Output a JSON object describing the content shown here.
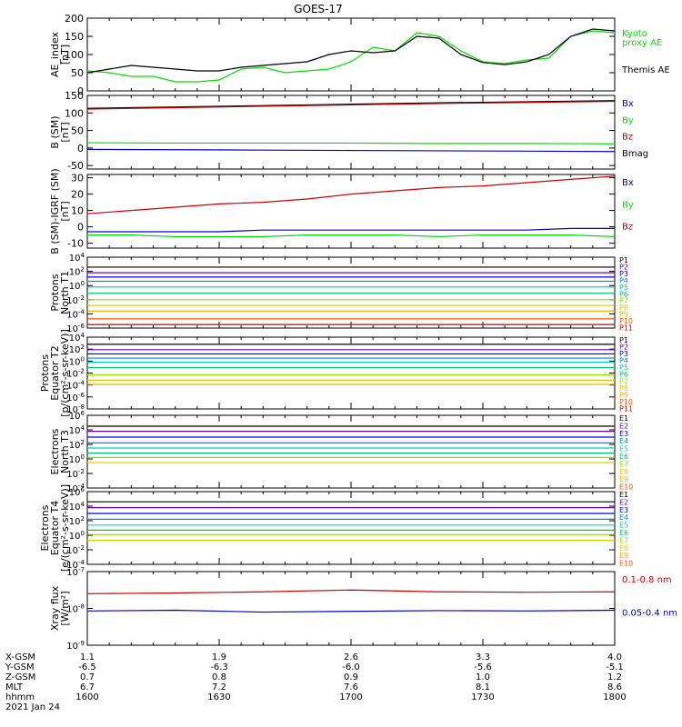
{
  "title": "GOES-17",
  "colors": {
    "black": "#000000",
    "red": "#cc0000",
    "green": "#00e000",
    "blue": "#0000cc",
    "p": [
      "#000000",
      "#6a00b0",
      "#0000ee",
      "#0088ee",
      "#00cccc",
      "#00c070",
      "#90dd00",
      "#ddcc00",
      "#ffaa00",
      "#ff5500",
      "#cc0000"
    ],
    "e": [
      "#000000",
      "#6a00b0",
      "#0000ee",
      "#0088ee",
      "#00cccc",
      "#00c070",
      "#90dd00",
      "#ddcc00",
      "#ffaa00",
      "#ff5500",
      "#cc0000"
    ]
  },
  "chart_data": [
    {
      "id": "ae",
      "type": "line",
      "ylabel": [
        "AE_index",
        "[nT]"
      ],
      "ylim": [
        0,
        200
      ],
      "yticks": [
        "0",
        "50",
        "100",
        "150",
        "200"
      ],
      "legend": [
        {
          "text": "Kyoto",
          "color": "green"
        },
        {
          "text": "proxy AE",
          "color": "green"
        },
        {
          "text": "Themis AE",
          "color": "black"
        }
      ],
      "x": [
        0,
        5,
        10,
        15,
        20,
        25,
        30,
        35,
        40,
        45,
        50,
        55,
        60,
        65,
        70,
        75,
        80,
        85,
        90,
        95,
        100,
        105,
        110,
        115,
        120
      ],
      "series": [
        {
          "name": "Kyoto proxy AE",
          "color": "green",
          "values": [
            55,
            50,
            40,
            40,
            25,
            25,
            30,
            60,
            65,
            50,
            55,
            60,
            80,
            120,
            110,
            160,
            150,
            110,
            80,
            75,
            85,
            90,
            150,
            165,
            160
          ]
        },
        {
          "name": "Themis AE",
          "color": "black",
          "values": [
            50,
            60,
            70,
            65,
            60,
            55,
            55,
            65,
            70,
            75,
            80,
            100,
            110,
            105,
            110,
            150,
            145,
            100,
            78,
            72,
            80,
            100,
            150,
            170,
            165
          ]
        }
      ]
    },
    {
      "id": "bsm",
      "type": "line",
      "ylabel": [
        "B (SM)",
        "[nT]"
      ],
      "ylim": [
        -60,
        150
      ],
      "yticks": [
        "-50",
        "0",
        "50",
        "100",
        "150"
      ],
      "legend": [
        {
          "text": "Bx",
          "color": "blue"
        },
        {
          "text": "By",
          "color": "green"
        },
        {
          "text": "Bz",
          "color": "red"
        },
        {
          "text": "Bmag",
          "color": "black"
        }
      ],
      "x": [
        0,
        20,
        40,
        60,
        80,
        100,
        120
      ],
      "series": [
        {
          "name": "Bmag",
          "color": "black",
          "values": [
            113,
            117,
            121,
            125,
            129,
            132,
            135
          ]
        },
        {
          "name": "Bz",
          "color": "red",
          "values": [
            111,
            115,
            119,
            123,
            127,
            130,
            133
          ]
        },
        {
          "name": "By",
          "color": "green",
          "values": [
            15,
            14,
            14,
            14,
            13,
            13,
            12
          ]
        },
        {
          "name": "Bx",
          "color": "blue",
          "values": [
            -4,
            -5,
            -6,
            -7,
            -8,
            -9,
            -10
          ]
        }
      ]
    },
    {
      "id": "bigrf",
      "type": "line",
      "ylabel": [
        "B (SM)-IGRF (SM)",
        "[nT]"
      ],
      "ylim": [
        -13,
        32
      ],
      "yticks": [
        "-10",
        "0",
        "10",
        "20",
        "30"
      ],
      "legend": [
        {
          "text": "Bx",
          "color": "blue"
        },
        {
          "text": "By",
          "color": "green"
        },
        {
          "text": "Bz",
          "color": "red"
        }
      ],
      "x": [
        0,
        10,
        20,
        30,
        40,
        50,
        60,
        70,
        80,
        90,
        100,
        110,
        120
      ],
      "series": [
        {
          "name": "Bz",
          "color": "red",
          "values": [
            8,
            10,
            12,
            14,
            15,
            17,
            20,
            22,
            24,
            25,
            27,
            29,
            31
          ]
        },
        {
          "name": "Bx",
          "color": "blue",
          "values": [
            -3,
            -3,
            -3,
            -3,
            -2,
            -2,
            -2,
            -2,
            -2,
            -2,
            -2,
            -1,
            -1
          ]
        },
        {
          "name": "By",
          "color": "green",
          "values": [
            -5,
            -5,
            -6,
            -6,
            -6,
            -5,
            -5,
            -5,
            -6,
            -5,
            -5,
            -5,
            -6
          ]
        }
      ]
    },
    {
      "id": "pnorth",
      "type": "line",
      "log": true,
      "ylabel": [
        "Protons",
        "North T1"
      ],
      "ylim": [
        -6,
        4
      ],
      "ytickexp": [
        -6,
        -4,
        -2,
        0,
        2,
        4
      ],
      "legend_key": "p",
      "legend": [
        "P1",
        "P2",
        "P3",
        "P4",
        "P5",
        "P6",
        "P7",
        "P8",
        "P9",
        "P10",
        "P11"
      ],
      "x": [
        0,
        120
      ],
      "series": [
        {
          "name": "P1",
          "values": [
            2.6,
            2.6
          ]
        },
        {
          "name": "P2",
          "values": [
            1.8,
            1.8
          ]
        },
        {
          "name": "P3",
          "values": [
            1.2,
            1.2
          ]
        },
        {
          "name": "P4",
          "values": [
            0.6,
            0.6
          ]
        },
        {
          "name": "P5",
          "values": [
            -0.2,
            -0.2
          ]
        },
        {
          "name": "P6",
          "values": [
            -1.1,
            -1.1
          ]
        },
        {
          "name": "P7",
          "values": [
            -2,
            -2
          ]
        },
        {
          "name": "P8",
          "values": [
            -2.8,
            -2.8
          ]
        },
        {
          "name": "P9",
          "values": [
            -3.6,
            -3.6
          ]
        },
        {
          "name": "P10",
          "values": [
            -4.7,
            -4.7
          ]
        },
        {
          "name": "P11",
          "values": [
            -5.5,
            -5.5
          ]
        }
      ]
    },
    {
      "id": "peq",
      "type": "line",
      "log": true,
      "ylabel": [
        "Protons",
        "Equator T2",
        "[p/(cm²-s-sr-keV)]"
      ],
      "ylim": [
        -8,
        4
      ],
      "ytickexp": [
        -8,
        -6,
        -4,
        -2,
        0,
        2,
        4
      ],
      "legend_key": "p",
      "legend": [
        "P1",
        "P2",
        "P3",
        "P4",
        "P5",
        "P6",
        "P7",
        "P8",
        "P9",
        "P10",
        "P11"
      ],
      "x": [
        0,
        120
      ],
      "series": [
        {
          "name": "P1",
          "values": [
            2.8,
            2.8
          ]
        },
        {
          "name": "P2",
          "values": [
            1.9,
            1.9
          ]
        },
        {
          "name": "P3",
          "values": [
            1.2,
            1.2
          ]
        },
        {
          "name": "P4",
          "values": [
            0.5,
            0.5
          ]
        },
        {
          "name": "P5",
          "values": [
            -0.2,
            -0.2
          ]
        },
        {
          "name": "P6",
          "values": [
            -1.1,
            -1.1
          ]
        },
        {
          "name": "P7",
          "values": [
            -2.3,
            -2.3
          ]
        },
        {
          "name": "P8",
          "values": [
            -3.2,
            -3.2
          ]
        },
        {
          "name": "P9",
          "values": [
            -3.9,
            -3.9
          ]
        }
      ]
    },
    {
      "id": "enorth",
      "type": "line",
      "log": true,
      "ylabel": [
        "Electrons",
        "North T3"
      ],
      "ylim": [
        -4,
        6
      ],
      "ytickexp": [
        -4,
        -2,
        0,
        2,
        4,
        6
      ],
      "legend_key": "e",
      "legend": [
        "E1",
        "E2",
        "E3",
        "E4",
        "E5",
        "E6",
        "E7",
        "E8",
        "E9",
        "E10"
      ],
      "x": [
        0,
        120
      ],
      "series": [
        {
          "name": "E1",
          "values": [
            4.5,
            4.5
          ]
        },
        {
          "name": "E2",
          "values": [
            3.8,
            3.8
          ]
        },
        {
          "name": "E3",
          "values": [
            3.0,
            3.0
          ]
        },
        {
          "name": "E4",
          "values": [
            2.2,
            2.2
          ]
        },
        {
          "name": "E5",
          "values": [
            1.5,
            1.5
          ]
        },
        {
          "name": "E6",
          "values": [
            0.8,
            0.8
          ]
        },
        {
          "name": "E7",
          "values": [
            0.2,
            0.2
          ]
        },
        {
          "name": "E8",
          "values": [
            -0.5,
            -0.5
          ]
        }
      ]
    },
    {
      "id": "eeq",
      "type": "line",
      "log": true,
      "ylabel": [
        "Electrons",
        "Equator T4",
        "[e/(cm²-s-sr-keV)]"
      ],
      "ylim": [
        -4,
        6
      ],
      "ytickexp": [
        -4,
        -2,
        0,
        2,
        4,
        6
      ],
      "legend_key": "e",
      "legend": [
        "E1",
        "E2",
        "E3",
        "E4",
        "E5",
        "E6",
        "E7",
        "E8",
        "E9",
        "E10"
      ],
      "x": [
        0,
        120
      ],
      "series": [
        {
          "name": "E1",
          "values": [
            4.6,
            4.6
          ]
        },
        {
          "name": "E2",
          "values": [
            3.8,
            3.8
          ]
        },
        {
          "name": "E3",
          "values": [
            3.0,
            3.0
          ]
        },
        {
          "name": "E4",
          "values": [
            2.2,
            2.2
          ]
        },
        {
          "name": "E5",
          "values": [
            1.4,
            1.4
          ]
        },
        {
          "name": "E6",
          "values": [
            0.7,
            0.7
          ]
        },
        {
          "name": "E7",
          "values": [
            0.1,
            0.1
          ]
        },
        {
          "name": "E8",
          "values": [
            -0.7,
            -0.7
          ]
        }
      ]
    },
    {
      "id": "xray",
      "type": "line",
      "log": true,
      "ylabel": [
        "Xray flux",
        "[W/m²]"
      ],
      "ylim": [
        -9,
        -7
      ],
      "ytickexp": [
        -9,
        -8,
        -7
      ],
      "legend": [
        {
          "text": "0.1-0.8 nm",
          "color": "red"
        },
        {
          "text": "0.05-0.4 nm",
          "color": "blue"
        }
      ],
      "x": [
        0,
        20,
        40,
        60,
        80,
        100,
        120
      ],
      "series": [
        {
          "name": "0.1-0.8 nm",
          "color": "red",
          "values": [
            -7.6,
            -7.58,
            -7.55,
            -7.5,
            -7.55,
            -7.56,
            -7.55
          ]
        },
        {
          "name": "0.05-0.4 nm",
          "color": "blue",
          "values": [
            -8.07,
            -8.05,
            -8.1,
            -8.08,
            -8.06,
            -8.07,
            -8.05
          ]
        }
      ]
    }
  ],
  "xaxis": {
    "rows": [
      "X-GSM",
      "Y-GSM",
      "Z-GSM",
      "MLT",
      "hhmm"
    ],
    "columns": [
      [
        "1.1",
        "-6.5",
        "0.7",
        "6.7",
        "1600"
      ],
      [
        "1.9",
        "-6.3",
        "0.8",
        "7.2",
        "1630"
      ],
      [
        "2.6",
        "-6.0",
        "0.9",
        "7.6",
        "1700"
      ],
      [
        "3.3",
        "-5.6",
        "1.0",
        "8.1",
        "1730"
      ],
      [
        "4.0",
        "-5.1",
        "1.2",
        "8.6",
        "1800"
      ]
    ],
    "date": "2021 Jan 24"
  }
}
